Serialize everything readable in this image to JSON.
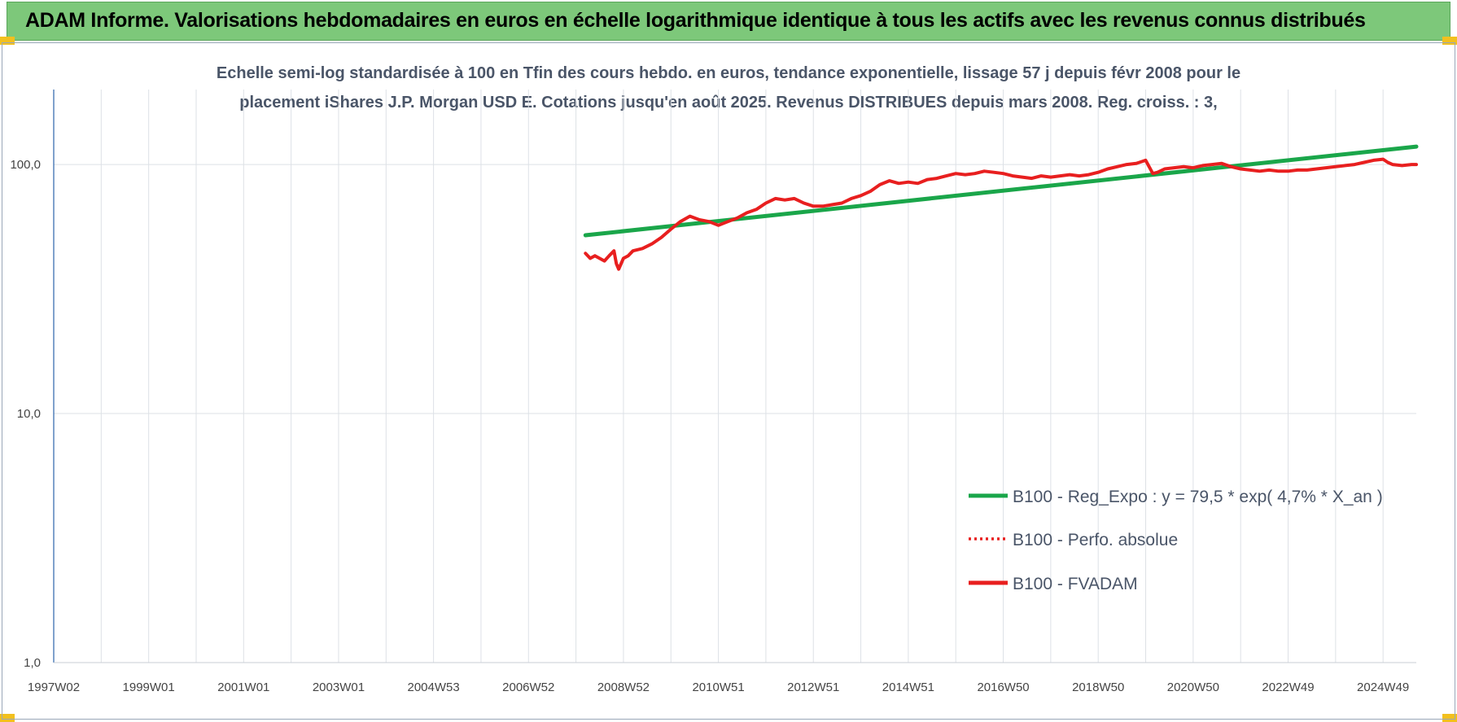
{
  "header": {
    "title": "ADAM Informe. Valorisations hebdomadaires en euros en échelle logarithmique identique à tous les actifs avec les revenus connus distribués"
  },
  "chart_data": {
    "type": "line",
    "title_lines": [
      "Echelle semi-log standardisée à 100 en Tfin des cours hebdo. en euros, tendance exponentielle, lissage 57 j depuis févr 2008 pour le",
      "placement iShares J.P. Morgan USD E. Cotations jusqu'en août 2025.  Revenus DISTRIBUES depuis mars 2008. Reg. croiss. : 3,"
    ],
    "yscale": "log",
    "ylim": [
      1,
      200
    ],
    "yticks": [
      {
        "value": 1,
        "label": "1,0"
      },
      {
        "value": 10,
        "label": "10,0"
      },
      {
        "value": 100,
        "label": "100,0"
      }
    ],
    "xlim": [
      1997.0,
      2025.7
    ],
    "xticks": [
      {
        "value": 1997.0,
        "label": "1997W02"
      },
      {
        "value": 1999.0,
        "label": "1999W01"
      },
      {
        "value": 2001.0,
        "label": "2001W01"
      },
      {
        "value": 2003.0,
        "label": "2003W01"
      },
      {
        "value": 2005.0,
        "label": "2004W53"
      },
      {
        "value": 2007.0,
        "label": "2006W52"
      },
      {
        "value": 2009.0,
        "label": "2008W52"
      },
      {
        "value": 2011.0,
        "label": "2010W51"
      },
      {
        "value": 2013.0,
        "label": "2012W51"
      },
      {
        "value": 2015.0,
        "label": "2014W51"
      },
      {
        "value": 2017.0,
        "label": "2016W50"
      },
      {
        "value": 2019.0,
        "label": "2018W50"
      },
      {
        "value": 2021.0,
        "label": "2020W50"
      },
      {
        "value": 2023.0,
        "label": "2022W49"
      },
      {
        "value": 2025.0,
        "label": "2024W49"
      }
    ],
    "grid": true,
    "legend_position": "bottom-right",
    "series": [
      {
        "name": "B100 - Reg_Expo : y = 79,5 * exp( 4,7% *  X_an )",
        "color": "#1aa64a",
        "style": "solid",
        "x": [
          2008.2,
          2025.7
        ],
        "y": [
          52,
          118
        ]
      },
      {
        "name": "B100 - Perfo. absolue",
        "color": "#e81f1f",
        "style": "dotted",
        "x": [],
        "y": []
      },
      {
        "name": "B100 - FVADAM",
        "color": "#e81f1f",
        "style": "solid",
        "x": [
          2008.2,
          2008.3,
          2008.4,
          2008.6,
          2008.7,
          2008.8,
          2008.85,
          2008.9,
          2009.0,
          2009.1,
          2009.2,
          2009.4,
          2009.6,
          2009.8,
          2010.0,
          2010.2,
          2010.4,
          2010.6,
          2010.8,
          2011.0,
          2011.2,
          2011.4,
          2011.6,
          2011.8,
          2012.0,
          2012.2,
          2012.4,
          2012.6,
          2012.8,
          2013.0,
          2013.2,
          2013.4,
          2013.6,
          2013.8,
          2014.0,
          2014.2,
          2014.4,
          2014.6,
          2014.8,
          2015.0,
          2015.2,
          2015.4,
          2015.6,
          2015.8,
          2016.0,
          2016.2,
          2016.4,
          2016.6,
          2016.8,
          2017.0,
          2017.2,
          2017.4,
          2017.6,
          2017.8,
          2018.0,
          2018.2,
          2018.4,
          2018.6,
          2018.8,
          2019.0,
          2019.2,
          2019.4,
          2019.6,
          2019.8,
          2020.0,
          2020.15,
          2020.25,
          2020.4,
          2020.6,
          2020.8,
          2021.0,
          2021.2,
          2021.4,
          2021.6,
          2021.8,
          2022.0,
          2022.2,
          2022.4,
          2022.6,
          2022.8,
          2023.0,
          2023.2,
          2023.4,
          2023.6,
          2023.8,
          2024.0,
          2024.2,
          2024.4,
          2024.6,
          2024.8,
          2025.0,
          2025.1,
          2025.2,
          2025.4,
          2025.6,
          2025.7
        ],
        "y": [
          44,
          42,
          43,
          41,
          43,
          45,
          40,
          38,
          42,
          43,
          45,
          46,
          48,
          51,
          55,
          59,
          62,
          60,
          59,
          57,
          59,
          61,
          64,
          66,
          70,
          73,
          72,
          73,
          70,
          68,
          68,
          69,
          70,
          73,
          75,
          78,
          83,
          86,
          84,
          85,
          84,
          87,
          88,
          90,
          92,
          91,
          92,
          94,
          93,
          92,
          90,
          89,
          88,
          90,
          89,
          90,
          91,
          90,
          91,
          93,
          96,
          98,
          100,
          101,
          104,
          92,
          93,
          96,
          97,
          98,
          97,
          99,
          100,
          101,
          98,
          96,
          95,
          94,
          95,
          94,
          94,
          95,
          95,
          96,
          97,
          98,
          99,
          100,
          102,
          104,
          105,
          102,
          100,
          99,
          100,
          100
        ]
      }
    ]
  }
}
